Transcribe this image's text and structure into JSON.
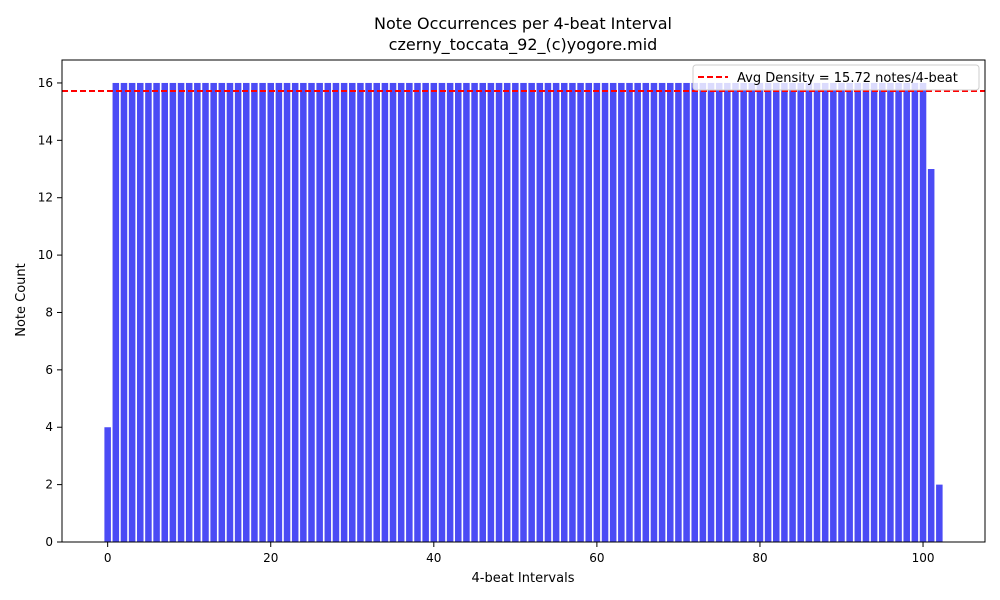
{
  "chart_data": {
    "type": "bar",
    "title": "Note Occurrences per 4-beat Interval",
    "subtitle": "czerny_toccata_92_(c)yogore.mid",
    "xlabel": "4-beat Intervals",
    "ylabel": "Note Count",
    "xlim": [
      -5.6,
      107.6
    ],
    "ylim": [
      0,
      16.8
    ],
    "xticks": [
      0,
      20,
      40,
      60,
      80,
      100
    ],
    "yticks": [
      0,
      2,
      4,
      6,
      8,
      10,
      12,
      14,
      16
    ],
    "bar_color": "#4b4bf5",
    "values": [
      4,
      16,
      16,
      16,
      16,
      16,
      16,
      16,
      16,
      16,
      16,
      16,
      16,
      16,
      16,
      16,
      16,
      16,
      16,
      16,
      16,
      16,
      16,
      16,
      16,
      16,
      16,
      16,
      16,
      16,
      16,
      16,
      16,
      16,
      16,
      16,
      16,
      16,
      16,
      16,
      16,
      16,
      16,
      16,
      16,
      16,
      16,
      16,
      16,
      16,
      16,
      16,
      16,
      16,
      16,
      16,
      16,
      16,
      16,
      16,
      16,
      16,
      16,
      16,
      16,
      16,
      16,
      16,
      16,
      16,
      16,
      16,
      16,
      16,
      16,
      16,
      16,
      16,
      16,
      16,
      16,
      16,
      16,
      16,
      16,
      16,
      16,
      16,
      16,
      16,
      16,
      16,
      16,
      16,
      16,
      16,
      16,
      16,
      16,
      16,
      16,
      13,
      2
    ],
    "reference_line": {
      "value": 15.72,
      "color": "#ff0000",
      "label": "Avg Density = 15.72 notes/4-beat"
    },
    "legend": "top-right",
    "grid": false
  }
}
